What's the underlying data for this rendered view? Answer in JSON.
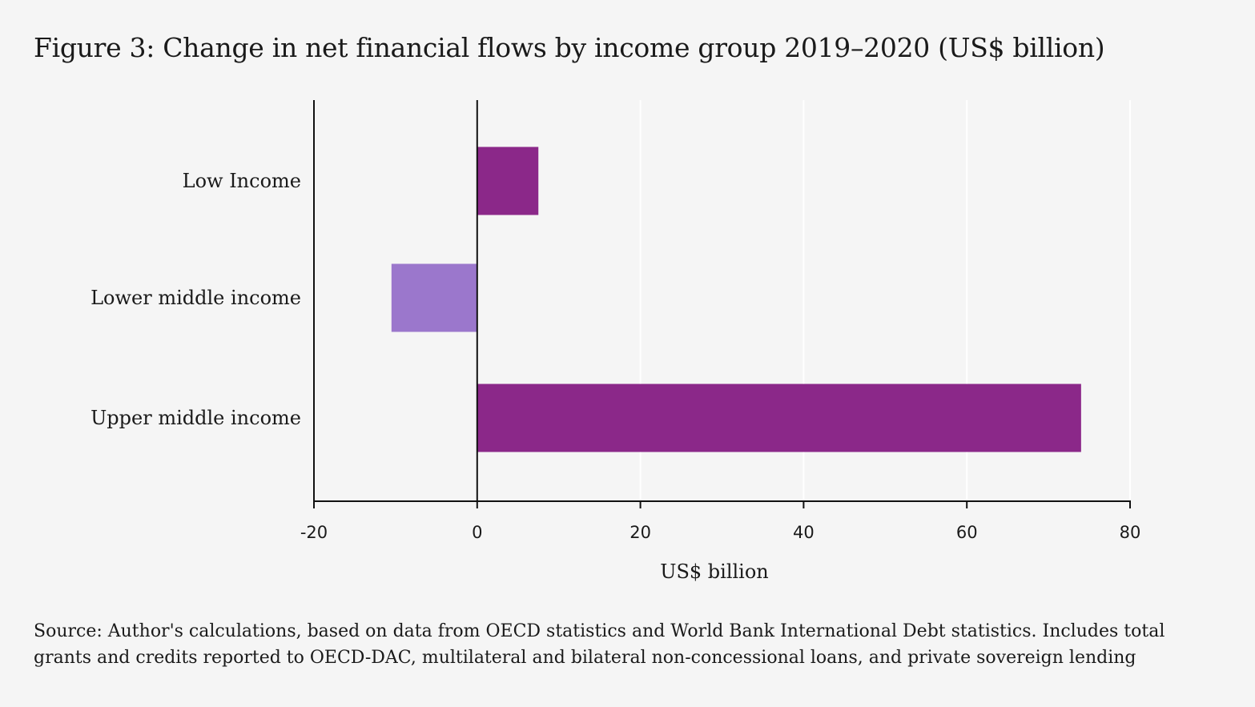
{
  "title": "Figure 3: Change in net financial flows by income group 2019–2020 (US$ billion)",
  "source": "Source: Author's calculations, based on data from OECD statistics and World Bank International Debt statistics. Includes total grants and credits reported to OECD-DAC, multilateral and bilateral non-concessional loans, and private sovereign lending",
  "chart_data": {
    "type": "bar",
    "orientation": "horizontal",
    "categories": [
      "Low Income",
      "Lower middle income",
      "Upper middle income"
    ],
    "values": [
      7.5,
      -10.5,
      74
    ],
    "colors": [
      "#8b2889",
      "#9b77cc",
      "#8b2889"
    ],
    "xlabel": "US$ billion",
    "ylabel": "",
    "xlim": [
      -20,
      80
    ],
    "xticks": [
      -20,
      0,
      20,
      40,
      60,
      80
    ],
    "xtick_labels": [
      "-20",
      "0",
      "20",
      "40",
      "60",
      "80"
    ],
    "grid": true,
    "legend": "none"
  }
}
